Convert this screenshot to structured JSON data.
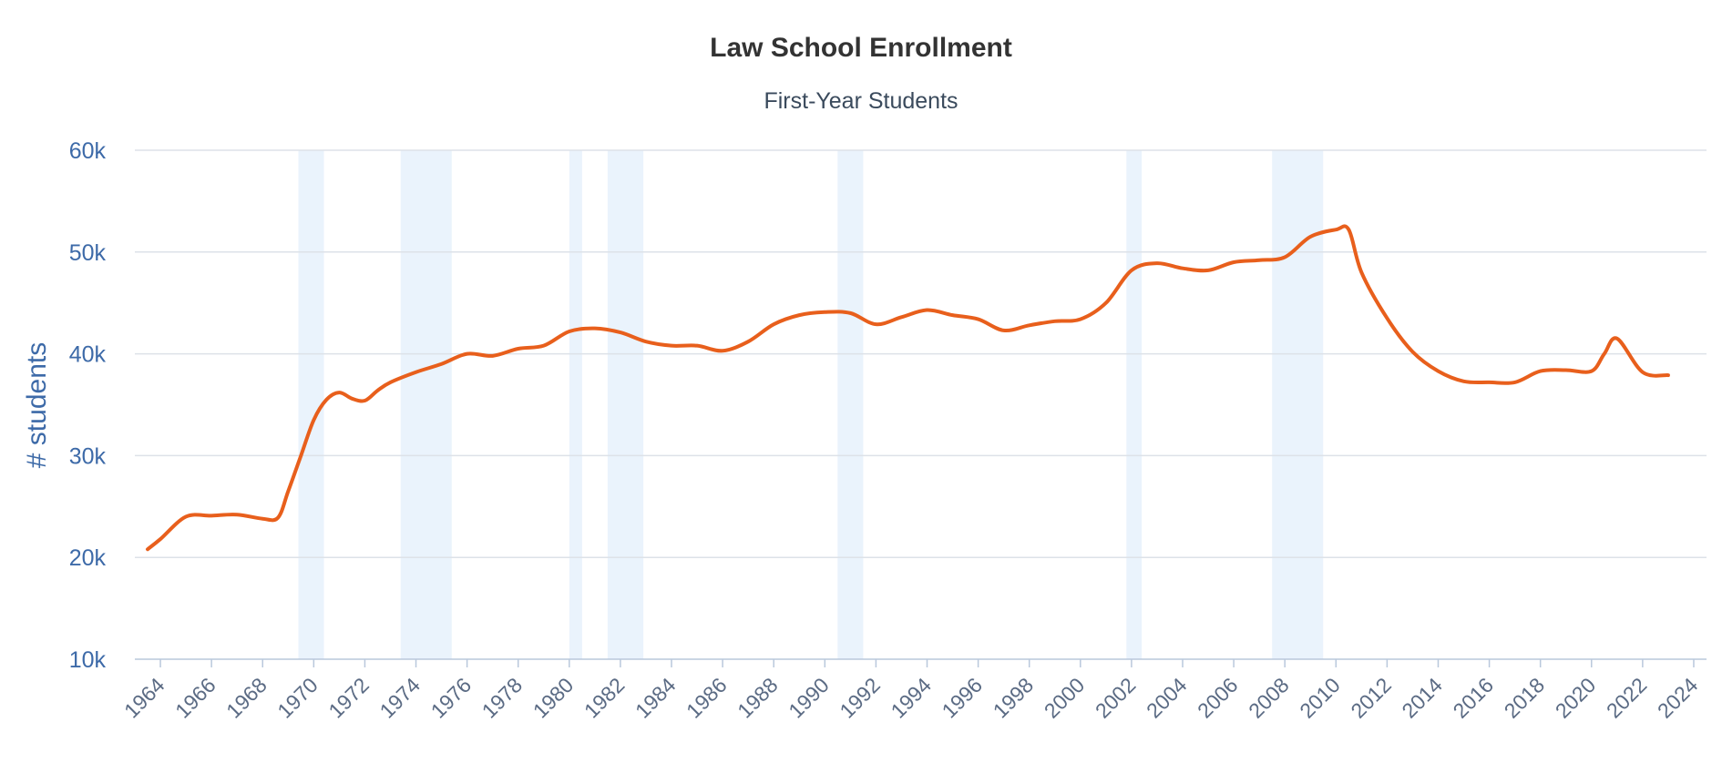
{
  "chart_data": {
    "type": "line",
    "title": "Law School Enrollment",
    "subtitle": "First-Year Students",
    "xlabel": "",
    "ylabel": "# students",
    "ylim": [
      10000,
      60000
    ],
    "xlim": [
      1963,
      2024.5
    ],
    "yticks": [
      {
        "value": 10000,
        "label": "10k"
      },
      {
        "value": 20000,
        "label": "20k"
      },
      {
        "value": 30000,
        "label": "30k"
      },
      {
        "value": 40000,
        "label": "40k"
      },
      {
        "value": 50000,
        "label": "50k"
      },
      {
        "value": 60000,
        "label": "60k"
      }
    ],
    "xticks": [
      {
        "value": 1964,
        "label": "1964"
      },
      {
        "value": 1966,
        "label": "1966"
      },
      {
        "value": 1968,
        "label": "1968"
      },
      {
        "value": 1970,
        "label": "1970"
      },
      {
        "value": 1972,
        "label": "1972"
      },
      {
        "value": 1974,
        "label": "1974"
      },
      {
        "value": 1976,
        "label": "1976"
      },
      {
        "value": 1978,
        "label": "1978"
      },
      {
        "value": 1980,
        "label": "1980"
      },
      {
        "value": 1982,
        "label": "1982"
      },
      {
        "value": 1984,
        "label": "1984"
      },
      {
        "value": 1986,
        "label": "1986"
      },
      {
        "value": 1988,
        "label": "1988"
      },
      {
        "value": 1990,
        "label": "1990"
      },
      {
        "value": 1992,
        "label": "1992"
      },
      {
        "value": 1994,
        "label": "1994"
      },
      {
        "value": 1996,
        "label": "1996"
      },
      {
        "value": 1998,
        "label": "1998"
      },
      {
        "value": 2000,
        "label": "2000"
      },
      {
        "value": 2002,
        "label": "2002"
      },
      {
        "value": 2004,
        "label": "2004"
      },
      {
        "value": 2006,
        "label": "2006"
      },
      {
        "value": 2008,
        "label": "2008"
      },
      {
        "value": 2010,
        "label": "2010"
      },
      {
        "value": 2012,
        "label": "2012"
      },
      {
        "value": 2014,
        "label": "2014"
      },
      {
        "value": 2016,
        "label": "2016"
      },
      {
        "value": 2018,
        "label": "2018"
      },
      {
        "value": 2020,
        "label": "2020"
      },
      {
        "value": 2022,
        "label": "2022"
      },
      {
        "value": 2024,
        "label": "2024"
      }
    ],
    "shaded_bands": [
      {
        "from": 1969.4,
        "to": 1970.4
      },
      {
        "from": 1973.4,
        "to": 1975.4
      },
      {
        "from": 1980.0,
        "to": 1980.5
      },
      {
        "from": 1981.5,
        "to": 1982.9
      },
      {
        "from": 1990.5,
        "to": 1991.5
      },
      {
        "from": 2001.8,
        "to": 2002.4
      },
      {
        "from": 2007.5,
        "to": 2009.5
      }
    ],
    "grid": true,
    "legend": "none",
    "series": [
      {
        "color": "#e85f1c",
        "x": [
          1963.5,
          1964,
          1965,
          1966,
          1967,
          1968,
          1968.6,
          1969,
          1969.5,
          1970,
          1970.5,
          1971,
          1971.5,
          1972,
          1972.5,
          1973,
          1974,
          1975,
          1976,
          1977,
          1978,
          1979,
          1980,
          1981,
          1982,
          1983,
          1984,
          1985,
          1986,
          1987,
          1988,
          1989,
          1990,
          1991,
          1992,
          1993,
          1994,
          1995,
          1996,
          1997,
          1998,
          1999,
          2000,
          2001,
          2002,
          2003,
          2004,
          2005,
          2006,
          2007,
          2008,
          2009,
          2010,
          2010.5,
          2011,
          2012,
          2013,
          2014,
          2015,
          2016,
          2017,
          2018,
          2019,
          2020,
          2020.5,
          2021,
          2022,
          2023
        ],
        "y": [
          20800,
          21800,
          24000,
          24100,
          24200,
          23800,
          23900,
          26500,
          30000,
          33500,
          35500,
          36200,
          35600,
          35400,
          36400,
          37200,
          38200,
          39000,
          40000,
          39800,
          40500,
          40800,
          42200,
          42500,
          42100,
          41200,
          40800,
          40800,
          40300,
          41200,
          42900,
          43800,
          44100,
          44000,
          42900,
          43600,
          44300,
          43800,
          43400,
          42300,
          42800,
          43200,
          43400,
          45000,
          48200,
          48900,
          48400,
          48200,
          49000,
          49200,
          49500,
          51500,
          52200,
          52200,
          48000,
          43500,
          40200,
          38300,
          37300,
          37200,
          37200,
          38300,
          38400,
          38300,
          40000,
          41500,
          38200,
          37900
        ]
      }
    ]
  }
}
